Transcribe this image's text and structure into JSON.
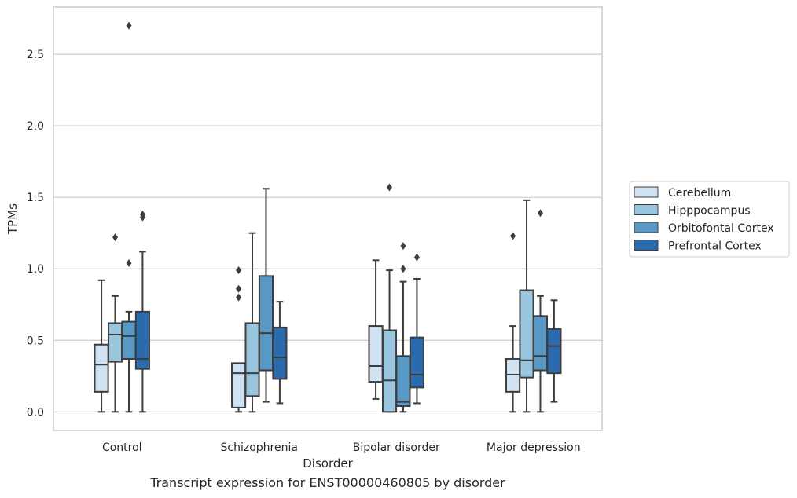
{
  "caption": "Transcript expression for ENST00000460805 by disorder",
  "chart_data": {
    "type": "box",
    "xlabel": "Disorder",
    "ylabel": "TPMs",
    "ylim": [
      -0.13,
      2.83
    ],
    "yticks": [
      "0.0",
      "0.5",
      "1.0",
      "1.5",
      "2.0",
      "2.5"
    ],
    "ytick_values": [
      0.0,
      0.5,
      1.0,
      1.5,
      2.0,
      2.5
    ],
    "grid": "horizontal",
    "legend_position": "right",
    "categories": [
      "Control",
      "Schizophrenia",
      "Bipolar disorder",
      "Major depression"
    ],
    "series": [
      {
        "name": "Cerebellum",
        "color": "#d1e2f2",
        "boxes": [
          {
            "whislo": 0.0,
            "q1": 0.14,
            "med": 0.33,
            "q3": 0.47,
            "whishi": 0.92,
            "fliers": []
          },
          {
            "whislo": 0.0,
            "q1": 0.03,
            "med": 0.27,
            "q3": 0.34,
            "whishi": 0.34,
            "fliers": [
              0.8,
              0.86,
              0.99
            ]
          },
          {
            "whislo": 0.09,
            "q1": 0.21,
            "med": 0.32,
            "q3": 0.6,
            "whishi": 1.06,
            "fliers": []
          },
          {
            "whislo": 0.0,
            "q1": 0.14,
            "med": 0.26,
            "q3": 0.37,
            "whishi": 0.6,
            "fliers": [
              1.23
            ]
          }
        ]
      },
      {
        "name": "Hipppocampus",
        "color": "#9ac5de",
        "boxes": [
          {
            "whislo": 0.0,
            "q1": 0.35,
            "med": 0.54,
            "q3": 0.62,
            "whishi": 0.81,
            "fliers": [
              1.22
            ]
          },
          {
            "whislo": 0.0,
            "q1": 0.11,
            "med": 0.27,
            "q3": 0.62,
            "whishi": 1.25,
            "fliers": []
          },
          {
            "whislo": 0.0,
            "q1": 0.0,
            "med": 0.22,
            "q3": 0.57,
            "whishi": 0.99,
            "fliers": [
              1.57
            ]
          },
          {
            "whislo": 0.0,
            "q1": 0.24,
            "med": 0.36,
            "q3": 0.85,
            "whishi": 1.48,
            "fliers": []
          }
        ]
      },
      {
        "name": "Orbitofontal Cortex",
        "color": "#5899c6",
        "boxes": [
          {
            "whislo": 0.0,
            "q1": 0.37,
            "med": 0.53,
            "q3": 0.63,
            "whishi": 0.7,
            "fliers": [
              1.04,
              2.7
            ]
          },
          {
            "whislo": 0.07,
            "q1": 0.29,
            "med": 0.55,
            "q3": 0.95,
            "whishi": 1.56,
            "fliers": []
          },
          {
            "whislo": 0.0,
            "q1": 0.04,
            "med": 0.07,
            "q3": 0.39,
            "whishi": 0.91,
            "fliers": [
              1.0,
              1.16
            ]
          },
          {
            "whislo": 0.0,
            "q1": 0.29,
            "med": 0.39,
            "q3": 0.67,
            "whishi": 0.81,
            "fliers": [
              1.39
            ]
          }
        ]
      },
      {
        "name": "Prefrontal Cortex",
        "color": "#2a6aad",
        "boxes": [
          {
            "whislo": 0.0,
            "q1": 0.3,
            "med": 0.37,
            "q3": 0.7,
            "whishi": 1.12,
            "fliers": [
              1.36,
              1.38
            ]
          },
          {
            "whislo": 0.06,
            "q1": 0.23,
            "med": 0.38,
            "q3": 0.59,
            "whishi": 0.77,
            "fliers": []
          },
          {
            "whislo": 0.06,
            "q1": 0.17,
            "med": 0.26,
            "q3": 0.52,
            "whishi": 0.93,
            "fliers": [
              1.08
            ]
          },
          {
            "whislo": 0.07,
            "q1": 0.27,
            "med": 0.46,
            "q3": 0.58,
            "whishi": 0.78,
            "fliers": []
          }
        ]
      }
    ]
  }
}
